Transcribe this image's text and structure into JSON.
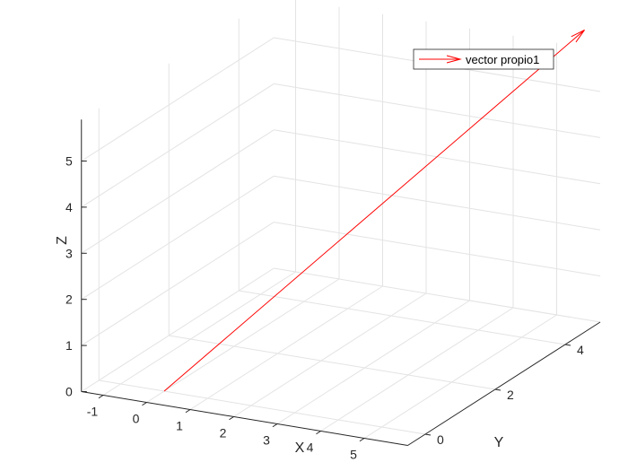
{
  "chart_data": {
    "type": "line",
    "projection": "3d",
    "grid": true,
    "legend_position": "top-right",
    "xlabel": "X",
    "ylabel": "Y",
    "zlabel": "Z",
    "xlim": [
      -1.5,
      6
    ],
    "ylim": [
      -0.5,
      5
    ],
    "zlim": [
      0,
      5.9
    ],
    "xticks": [
      "-1",
      "0",
      "1",
      "2",
      "3",
      "4",
      "5"
    ],
    "yticks": [
      "0",
      "2",
      "4"
    ],
    "zticks": [
      "0",
      "1",
      "2",
      "3",
      "4",
      "5"
    ],
    "series": [
      {
        "name": "vector propio1",
        "color": "#ff0000",
        "style": "quiver-arrow",
        "start": [
          0,
          0,
          0
        ],
        "end": [
          5.8,
          4.8,
          6.4
        ]
      }
    ]
  }
}
